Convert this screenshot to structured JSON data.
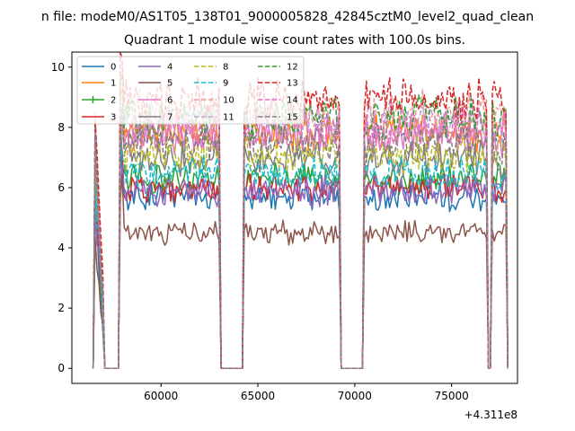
{
  "chart_data": {
    "type": "line",
    "suptitle": "n file: modeM0/AS1T05_138T01_9000005828_42845cztM0_level2_quad_clean",
    "title": "Quadrant 1 module wise count rates with 100.0s bins.",
    "xlabel": "",
    "ylabel": "",
    "x_offset_label": "+4.311e8",
    "xlim": [
      55400,
      78400
    ],
    "ylim": [
      -0.5,
      10.5
    ],
    "xticks": [
      60000,
      65000,
      70000,
      75000
    ],
    "yticks": [
      0,
      2,
      4,
      6,
      8,
      10
    ],
    "on_segments": [
      [
        56600,
        57000
      ],
      [
        57900,
        63000
      ],
      [
        64300,
        69200
      ],
      [
        70500,
        76800
      ],
      [
        77050,
        77800
      ]
    ],
    "legend_location": "upper-left",
    "legend_columns": 4,
    "series": [
      {
        "name": "0",
        "level": 5.7,
        "color": "#1f77b4",
        "style": "solid"
      },
      {
        "name": "1",
        "level": 7.9,
        "color": "#ff7f0e",
        "style": "solid"
      },
      {
        "name": "2",
        "level": 6.3,
        "color": "#2ca02c",
        "style": "solid",
        "marker": "|"
      },
      {
        "name": "3",
        "level": 6.0,
        "color": "#d62728",
        "style": "solid"
      },
      {
        "name": "4",
        "level": 5.9,
        "color": "#9467bd",
        "style": "solid"
      },
      {
        "name": "5",
        "level": 4.5,
        "color": "#8c564b",
        "style": "solid"
      },
      {
        "name": "6",
        "level": 7.7,
        "color": "#e377c2",
        "style": "solid"
      },
      {
        "name": "7",
        "level": 6.9,
        "color": "#7f7f7f",
        "style": "solid"
      },
      {
        "name": "8",
        "level": 7.1,
        "color": "#bcbd22",
        "style": "dashed"
      },
      {
        "name": "9",
        "level": 6.5,
        "color": "#17becf",
        "style": "dashed"
      },
      {
        "name": "10",
        "level": 8.5,
        "color": "#e8a09a",
        "style": "dashed"
      },
      {
        "name": "11",
        "level": 8.2,
        "color": "#c8a0dc",
        "style": "dashed"
      },
      {
        "name": "12",
        "level": 8.3,
        "color": "#2ca02c",
        "style": "dashed"
      },
      {
        "name": "13",
        "level": 8.9,
        "color": "#d62728",
        "style": "dashed"
      },
      {
        "name": "14",
        "level": 8.0,
        "color": "#e377c2",
        "style": "dashed"
      },
      {
        "name": "15",
        "level": 7.5,
        "color": "#7f7f7f",
        "style": "dashed"
      }
    ]
  }
}
